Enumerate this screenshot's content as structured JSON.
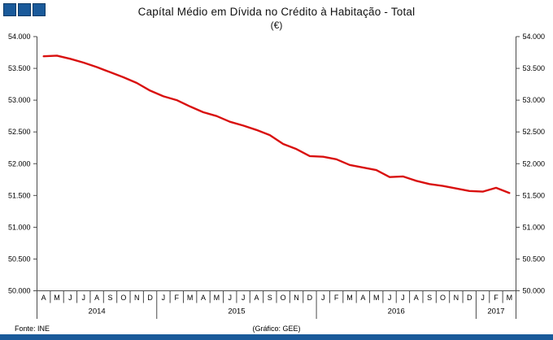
{
  "header": {
    "title": "Capítal Médio em Dívida no Crédito à Habitação - Total",
    "subtitle": "(€)"
  },
  "footer": {
    "source": "Fonte: INE",
    "credit": "(Gráfico: GEE)"
  },
  "colors": {
    "line": "#d9100f",
    "accent_blue": "#1a5a9a",
    "accent_blue_border": "#0c3a66",
    "axis": "#4a4a4a",
    "text": "#000000"
  },
  "chart_data": {
    "type": "line",
    "title": "Capítal Médio em Dívida no Crédito à Habitação - Total",
    "ylabel": "(€)",
    "ylim": [
      50000,
      54000
    ],
    "y_tick_step": 500,
    "y_tick_labels": [
      "54.000",
      "53.500",
      "53.000",
      "52.500",
      "52.000",
      "51.500",
      "51.000",
      "50.500",
      "50.000"
    ],
    "grid": false,
    "legend_position": "none",
    "month_labels": [
      "A",
      "M",
      "J",
      "J",
      "A",
      "S",
      "O",
      "N",
      "D",
      "J",
      "F",
      "M",
      "A",
      "M",
      "J",
      "J",
      "A",
      "S",
      "O",
      "N",
      "D",
      "J",
      "F",
      "M",
      "A",
      "M",
      "J",
      "J",
      "A",
      "S",
      "O",
      "N",
      "D",
      "J",
      "F",
      "M"
    ],
    "year_groups": [
      {
        "label": "2014",
        "months": 9
      },
      {
        "label": "2015",
        "months": 12
      },
      {
        "label": "2016",
        "months": 12
      },
      {
        "label": "2017",
        "months": 3
      }
    ],
    "series": [
      {
        "name": "Total",
        "color": "#d9100f",
        "values": [
          53690,
          53700,
          53650,
          53590,
          53520,
          53440,
          53360,
          53270,
          53150,
          53060,
          53000,
          52900,
          52810,
          52750,
          52660,
          52600,
          52530,
          52450,
          52310,
          52230,
          52120,
          52110,
          52070,
          51980,
          51940,
          51900,
          51790,
          51800,
          51730,
          51680,
          51650,
          51610,
          51570,
          51560,
          51620,
          51540
        ]
      }
    ]
  }
}
